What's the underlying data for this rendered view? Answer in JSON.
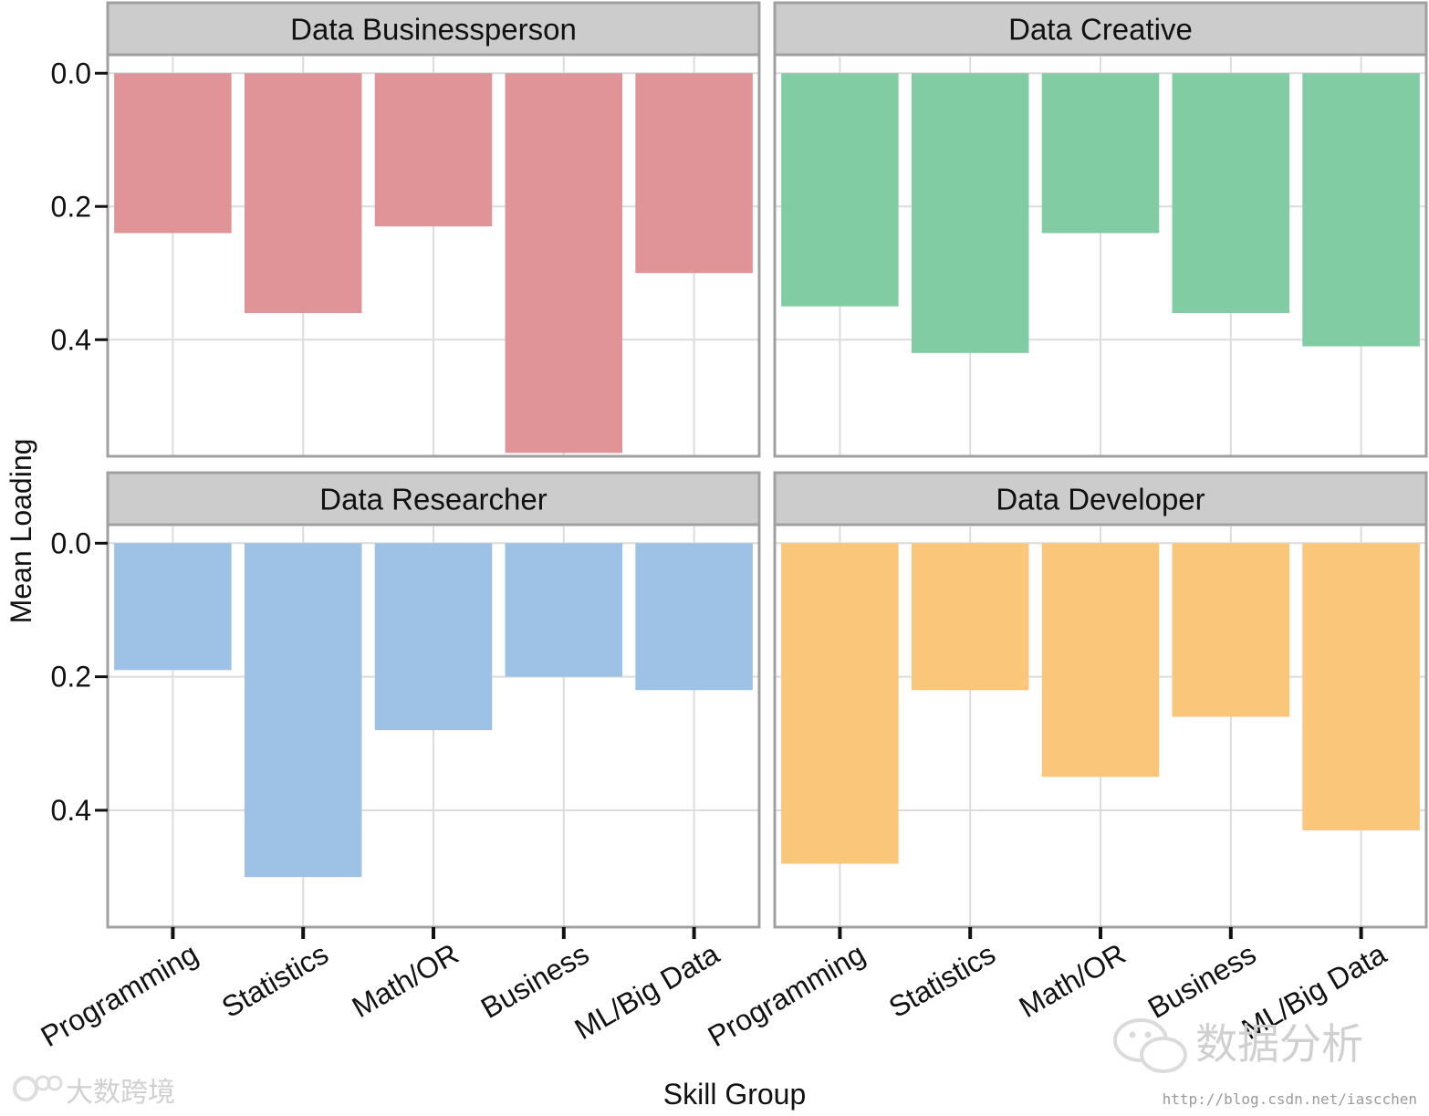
{
  "chart_data": {
    "type": "bar",
    "layout": "facet-grid-2x2",
    "xlabel": "Skill Group",
    "ylabel": "Mean Loading",
    "y_direction": "inverted",
    "categories": [
      "Programming",
      "Statistics",
      "Math/OR",
      "Business",
      "ML/Big Data"
    ],
    "y_ticks": [
      "0.0",
      "0.2",
      "0.4"
    ],
    "ylim": [
      -0.025,
      0.575
    ],
    "panels": [
      {
        "title": "Data Businessperson",
        "color": "#e09497",
        "values": [
          0.24,
          0.36,
          0.23,
          0.57,
          0.3
        ]
      },
      {
        "title": "Data Creative",
        "color": "#82cca3",
        "values": [
          0.35,
          0.42,
          0.24,
          0.36,
          0.41
        ]
      },
      {
        "title": "Data Researcher",
        "color": "#9dc2e5",
        "values": [
          0.19,
          0.5,
          0.28,
          0.2,
          0.22
        ]
      },
      {
        "title": "Data Developer",
        "color": "#f9c67a",
        "values": [
          0.48,
          0.22,
          0.35,
          0.26,
          0.43
        ]
      }
    ]
  },
  "watermarks": {
    "top_right": "数据分析",
    "bottom_left": "大数跨境",
    "url": "http://blog.csdn.net/iascchen"
  },
  "colors": {
    "strip_background": "#cccccc",
    "panel_border": "#a0a0a0",
    "grid": "#dcdcdc"
  }
}
